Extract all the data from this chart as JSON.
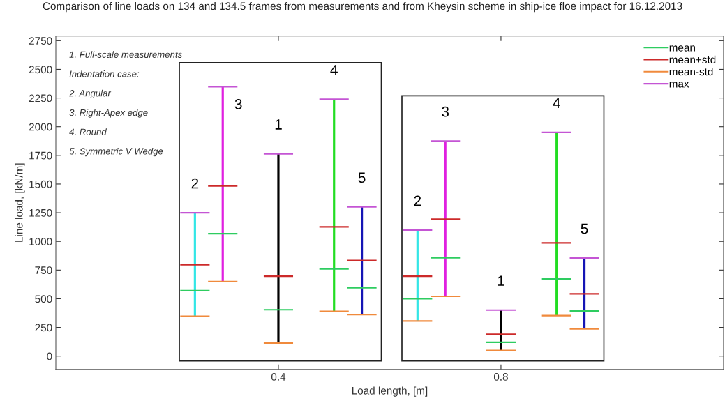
{
  "chart_data": {
    "type": "bar",
    "title": "Comparison of line loads on 134 and 134.5 frames from measurements and from Kheysin scheme in ship-ice floe impact for 16.12.2013",
    "xlabel": "Load length, [m]",
    "ylabel": "Line load, [kN/m]",
    "xlim": [
      0,
      1.2
    ],
    "xticks": [
      0.4,
      0.8
    ],
    "ylim": [
      -116,
      2790
    ],
    "yticks": [
      0,
      250,
      500,
      750,
      1000,
      1250,
      1500,
      1750,
      2000,
      2250,
      2500,
      2750
    ],
    "grid": false,
    "legend": "top right",
    "series": [
      {
        "x": [
          0.25,
          0.3,
          0.4,
          0.5,
          0.55,
          0.65,
          0.7,
          0.8,
          0.9,
          0.95
        ],
        "base": [
          347,
          650,
          115,
          389,
          362,
          306,
          521,
          49,
          353,
          237
        ],
        "values": [
          903,
          1699,
          1649,
          1850,
          939,
          793,
          1354,
          352,
          1597,
          618
        ],
        "colors": [
          "#33e6e6",
          "#e020e0",
          "#000000",
          "#22dd22",
          "#1515b5",
          "#33e6e6",
          "#e020e0",
          "#000000",
          "#22dd22",
          "#1515b5"
        ]
      },
      {
        "name": "mean",
        "color": "#2ecc60",
        "type": "line",
        "x": [
          0.225,
          0.275
        ],
        "values": [
          570,
          570
        ]
      },
      {
        "color": "#2ecc60",
        "type": "line",
        "x": [
          0.275,
          0.325
        ],
        "values": [
          1068,
          1068
        ]
      },
      {
        "color": "#2ecc60",
        "type": "line",
        "x": [
          0.375,
          0.425
        ],
        "values": [
          404,
          404
        ]
      },
      {
        "color": "#2ecc60",
        "type": "line",
        "x": [
          0.475,
          0.525
        ],
        "values": [
          760,
          760
        ]
      },
      {
        "color": "#2ecc60",
        "type": "line",
        "x": [
          0.525,
          0.575
        ],
        "values": [
          596,
          596
        ]
      },
      {
        "color": "#2ecc60",
        "type": "line",
        "x": [
          0.625,
          0.675
        ],
        "values": [
          500,
          500
        ]
      },
      {
        "color": "#2ecc60",
        "type": "line",
        "x": [
          0.675,
          0.725
        ],
        "values": [
          857,
          857
        ]
      },
      {
        "color": "#2ecc60",
        "type": "line",
        "x": [
          0.775,
          0.825
        ],
        "values": [
          120,
          120
        ]
      },
      {
        "color": "#2ecc60",
        "type": "line",
        "x": [
          0.875,
          0.925
        ],
        "values": [
          673,
          673
        ]
      },
      {
        "color": "#2ecc60",
        "type": "line",
        "x": [
          0.925,
          0.975
        ],
        "values": [
          393,
          393
        ]
      },
      {
        "name": "mean+std",
        "color": "#cc2a2a",
        "type": "line",
        "x": [
          0.225,
          0.275
        ],
        "values": [
          796,
          796
        ]
      },
      {
        "color": "#cc2a2a",
        "type": "line",
        "x": [
          0.275,
          0.325
        ],
        "values": [
          1483,
          1483
        ]
      },
      {
        "color": "#cc2a2a",
        "type": "line",
        "x": [
          0.375,
          0.425
        ],
        "values": [
          696,
          696
        ]
      },
      {
        "color": "#cc2a2a",
        "type": "line",
        "x": [
          0.475,
          0.525
        ],
        "values": [
          1126,
          1126
        ]
      },
      {
        "color": "#cc2a2a",
        "type": "line",
        "x": [
          0.525,
          0.575
        ],
        "values": [
          833,
          833
        ]
      },
      {
        "color": "#cc2a2a",
        "type": "line",
        "x": [
          0.625,
          0.675
        ],
        "values": [
          697,
          697
        ]
      },
      {
        "color": "#cc2a2a",
        "type": "line",
        "x": [
          0.675,
          0.725
        ],
        "values": [
          1194,
          1194
        ]
      },
      {
        "color": "#cc2a2a",
        "type": "line",
        "x": [
          0.775,
          0.825
        ],
        "values": [
          190,
          190
        ]
      },
      {
        "color": "#cc2a2a",
        "type": "line",
        "x": [
          0.875,
          0.925
        ],
        "values": [
          987,
          987
        ]
      },
      {
        "color": "#cc2a2a",
        "type": "line",
        "x": [
          0.925,
          0.975
        ],
        "values": [
          543,
          543
        ]
      },
      {
        "name": "mean-std",
        "color": "#f08a3c",
        "type": "line",
        "x": [
          0.225,
          0.275
        ],
        "values": [
          347,
          347
        ]
      },
      {
        "color": "#f08a3c",
        "type": "line",
        "x": [
          0.275,
          0.325
        ],
        "values": [
          650,
          650
        ]
      },
      {
        "color": "#f08a3c",
        "type": "line",
        "x": [
          0.375,
          0.425
        ],
        "values": [
          115,
          115
        ]
      },
      {
        "color": "#f08a3c",
        "type": "line",
        "x": [
          0.475,
          0.525
        ],
        "values": [
          389,
          389
        ]
      },
      {
        "color": "#f08a3c",
        "type": "line",
        "x": [
          0.525,
          0.575
        ],
        "values": [
          362,
          362
        ]
      },
      {
        "color": "#f08a3c",
        "type": "line",
        "x": [
          0.625,
          0.675
        ],
        "values": [
          306,
          306
        ]
      },
      {
        "color": "#f08a3c",
        "type": "line",
        "x": [
          0.675,
          0.725
        ],
        "values": [
          521,
          521
        ]
      },
      {
        "color": "#f08a3c",
        "type": "line",
        "x": [
          0.775,
          0.825
        ],
        "values": [
          49,
          49
        ]
      },
      {
        "color": "#f08a3c",
        "type": "line",
        "x": [
          0.875,
          0.925
        ],
        "values": [
          353,
          353
        ]
      },
      {
        "color": "#f08a3c",
        "type": "line",
        "x": [
          0.925,
          0.975
        ],
        "values": [
          237,
          237
        ]
      },
      {
        "name": "max",
        "color": "#c455d4",
        "type": "line",
        "x": [
          0.225,
          0.275
        ],
        "values": [
          1250,
          1250
        ]
      },
      {
        "color": "#c455d4",
        "type": "line",
        "x": [
          0.275,
          0.325
        ],
        "values": [
          2349,
          2349
        ]
      },
      {
        "color": "#c455d4",
        "type": "line",
        "x": [
          0.375,
          0.425
        ],
        "values": [
          1764,
          1764
        ]
      },
      {
        "color": "#c455d4",
        "type": "line",
        "x": [
          0.475,
          0.525
        ],
        "values": [
          2239,
          2239
        ]
      },
      {
        "color": "#c455d4",
        "type": "line",
        "x": [
          0.525,
          0.575
        ],
        "values": [
          1301,
          1301
        ]
      },
      {
        "color": "#c455d4",
        "type": "line",
        "x": [
          0.625,
          0.675
        ],
        "values": [
          1099,
          1099
        ]
      },
      {
        "color": "#c455d4",
        "type": "line",
        "x": [
          0.675,
          0.725
        ],
        "values": [
          1875,
          1875
        ]
      },
      {
        "color": "#c455d4",
        "type": "line",
        "x": [
          0.775,
          0.825
        ],
        "values": [
          401,
          401
        ]
      },
      {
        "color": "#c455d4",
        "type": "line",
        "x": [
          0.875,
          0.925
        ],
        "values": [
          1950,
          1950
        ]
      },
      {
        "color": "#c455d4",
        "type": "line",
        "x": [
          0.925,
          0.975
        ],
        "values": [
          855,
          855
        ]
      }
    ],
    "annotations": [
      "1. Full-scale measurements",
      "Indentation case:",
      "2. Angular",
      "3. Right-Apex edge",
      "4. Round",
      "5. Symmetric V Wedge",
      {
        "text": "2",
        "x": 0.25,
        "y": 1250
      },
      {
        "text": "3",
        "x": 0.3,
        "y": 2186
      },
      {
        "text": "1",
        "x": 0.4,
        "y": 1764
      },
      {
        "text": "4",
        "x": 0.5,
        "y": 2239
      },
      {
        "text": "5",
        "x": 0.55,
        "y": 1301
      },
      {
        "text": "2",
        "x": 0.65,
        "y": 1099
      },
      {
        "text": "3",
        "x": 0.7,
        "y": 1875
      },
      {
        "text": "1",
        "x": 0.8,
        "y": 401
      },
      {
        "text": "4",
        "x": 0.9,
        "y": 1950
      },
      {
        "text": "5",
        "x": 0.95,
        "y": 855
      }
    ]
  }
}
